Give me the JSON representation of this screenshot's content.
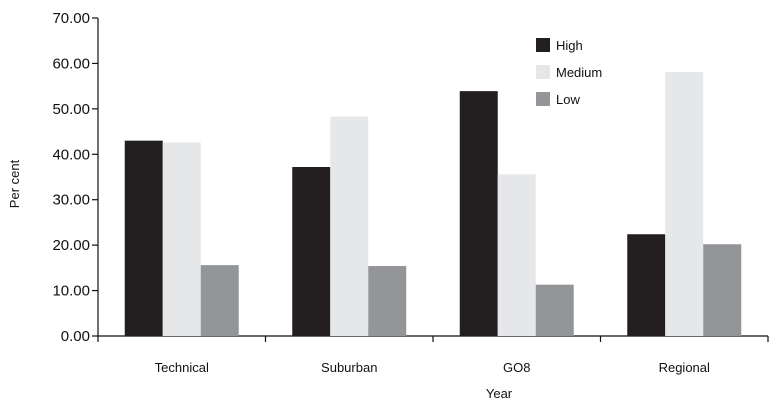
{
  "chart_data": {
    "type": "bar",
    "xlabel": "Year",
    "ylabel": "Per cent",
    "ylim": [
      0,
      70
    ],
    "yticks": [
      "0.00",
      "10.00",
      "20.00",
      "30.00",
      "40.00",
      "50.00",
      "60.00",
      "70.00"
    ],
    "categories": [
      "Technical",
      "Suburban",
      "GO8",
      "Regional"
    ],
    "series": [
      {
        "name": "High",
        "color": "#231f20",
        "values": [
          43.0,
          37.2,
          53.9,
          22.4
        ]
      },
      {
        "name": "Medium",
        "color": "#e6e7e8",
        "values": [
          42.6,
          48.3,
          35.6,
          58.1
        ]
      },
      {
        "name": "Low",
        "color": "#939598",
        "values": [
          15.6,
          15.4,
          11.3,
          20.2
        ]
      }
    ],
    "grid": false,
    "legend": "top-right"
  }
}
